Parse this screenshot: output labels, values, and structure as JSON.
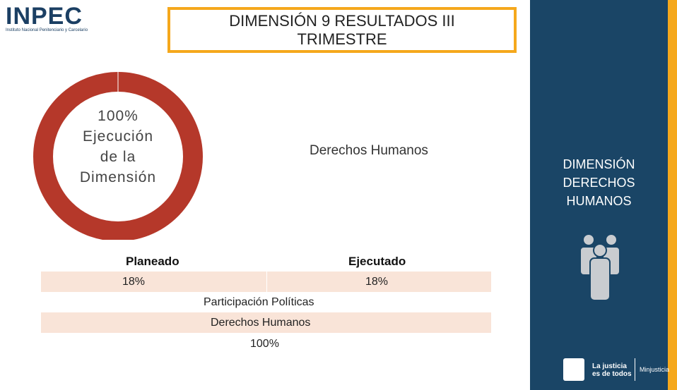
{
  "header": {
    "logo": "INPEC",
    "logo_subtitle": "Instituto Nacional Penitenciario y Carcelario",
    "title": "DIMENSIÓN 9 RESULTADOS  III TRIMESTRE"
  },
  "donut": {
    "lines": [
      "100%",
      "Ejecución",
      "de la",
      "Dimensión"
    ]
  },
  "chart_label": "Derechos Humanos",
  "table": {
    "headers": [
      "Planeado",
      "Ejecutado"
    ],
    "rows": [
      [
        "18%",
        "18%"
      ],
      [
        "Participación Políticas"
      ],
      [
        "Derechos Humanos"
      ],
      [
        "100%"
      ]
    ]
  },
  "sidebar": {
    "title_lines": [
      "DIMENSIÓN",
      "DERECHOS",
      "HUMANOS"
    ]
  },
  "footer": {
    "slogan_lines": [
      "La justicia",
      "es de todos"
    ],
    "ministry": "Minjusticia"
  }
}
